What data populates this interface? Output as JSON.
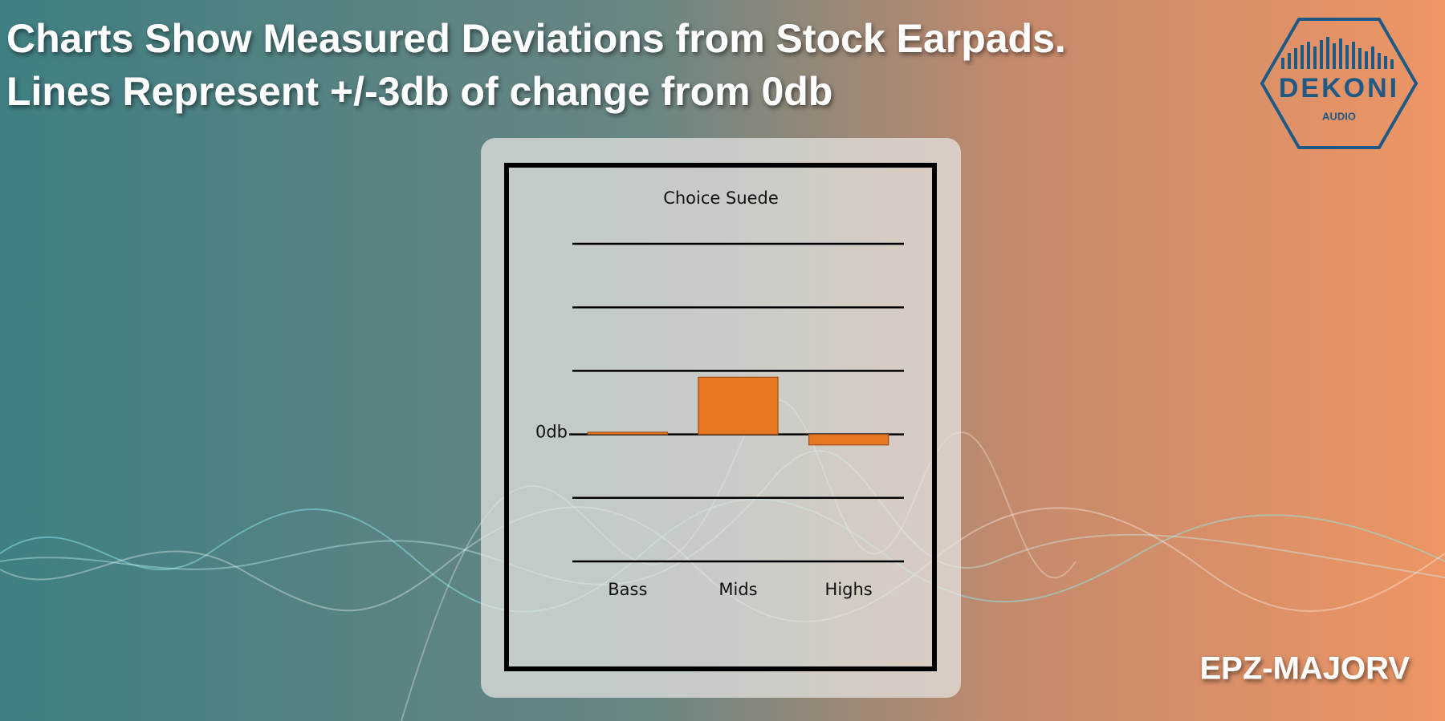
{
  "header": {
    "lines": [
      "Charts Show Measured Deviations from Stock Earpads.",
      "Lines Represent +/-3db of change from 0db"
    ]
  },
  "logo": {
    "name": "DEKONI",
    "sub": "AUDIO"
  },
  "model": "EPZ-MAJORV",
  "chart_data": {
    "type": "bar",
    "title": "Choice Suede",
    "categories": [
      "Bass",
      "Mids",
      "Highs"
    ],
    "values": [
      0.1,
      2.7,
      -0.5
    ],
    "color": "#e87722",
    "ylim": [
      -6,
      9
    ],
    "yticks": [
      {
        "value": 0,
        "label": "0db"
      }
    ],
    "ygrid": [
      -6,
      -3,
      0,
      3,
      6,
      9
    ],
    "grid": true
  }
}
